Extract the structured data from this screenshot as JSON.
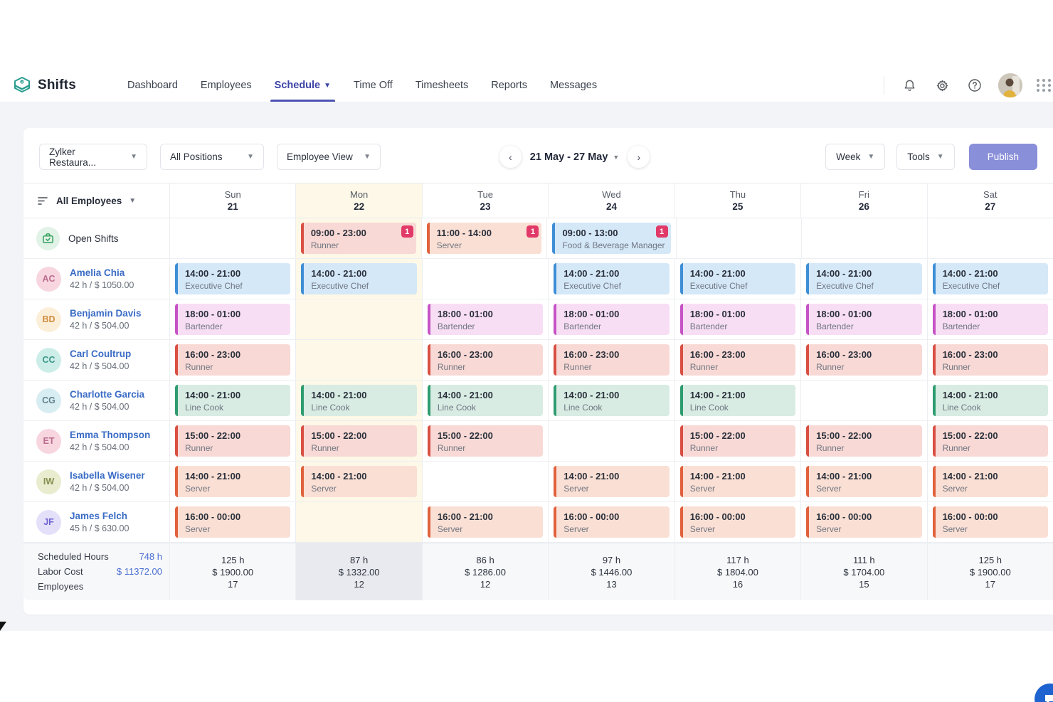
{
  "nav": {
    "brand": "Shifts",
    "items": [
      "Dashboard",
      "Employees",
      "Schedule",
      "Time Off",
      "Timesheets",
      "Reports",
      "Messages"
    ],
    "active": "Schedule",
    "right_icons": [
      "bell-icon",
      "gear-icon",
      "help-icon",
      "user-avatar",
      "apps-grid-icon"
    ]
  },
  "toolbar": {
    "location_dropdown": "Zylker Restaura...",
    "positions_dropdown": "All Positions",
    "view_dropdown": "Employee View",
    "date_range": "21 May - 27 May",
    "range_dropdown": "Week",
    "tools_dropdown": "Tools",
    "publish_label": "Publish"
  },
  "schedule": {
    "left_header": "All Employees",
    "days": [
      {
        "name": "Sun",
        "date": "21",
        "highlight": false
      },
      {
        "name": "Mon",
        "date": "22",
        "highlight": true
      },
      {
        "name": "Tue",
        "date": "23",
        "highlight": false
      },
      {
        "name": "Wed",
        "date": "24",
        "highlight": false
      },
      {
        "name": "Thu",
        "date": "25",
        "highlight": false
      },
      {
        "name": "Fri",
        "date": "26",
        "highlight": false
      },
      {
        "name": "Sat",
        "date": "27",
        "highlight": false
      }
    ],
    "shift_colors": {
      "executive_chef": {
        "bg": "#d5e8f8",
        "border": "#3e8ed6"
      },
      "bartender": {
        "bg": "#f8def5",
        "border": "#c653c6"
      },
      "runner": {
        "bg": "#f8d9d5",
        "border": "#d94f43"
      },
      "line_cook": {
        "bg": "#d8ece3",
        "border": "#2f9c70"
      },
      "server": {
        "bg": "#fadfd4",
        "border": "#e0613c"
      },
      "fb_manager": {
        "bg": "#d5e8f8",
        "border": "#3e8ed6"
      }
    },
    "open_row": {
      "label": "Open Shifts",
      "cells": [
        null,
        {
          "time": "09:00 - 23:00",
          "role": "Runner",
          "type": "runner",
          "badge": "1"
        },
        {
          "time": "11:00 - 14:00",
          "role": "Server",
          "type": "server",
          "badge": "1"
        },
        {
          "time": "09:00 - 13:00",
          "role": "Food & Beverage Manager",
          "type": "fb_manager",
          "badge": "1"
        },
        null,
        null,
        null
      ]
    },
    "employees": [
      {
        "name": "Amelia Chia",
        "meta": "42 h / $ 1050.00",
        "initials": "AC",
        "avatar_bg": "#f7d6e0",
        "avatar_fg": "#bb6d8d",
        "cells": [
          {
            "time": "14:00 - 21:00",
            "role": "Executive Chef",
            "type": "executive_chef"
          },
          {
            "time": "14:00 - 21:00",
            "role": "Executive Chef",
            "type": "executive_chef"
          },
          null,
          {
            "time": "14:00 - 21:00",
            "role": "Executive Chef",
            "type": "executive_chef"
          },
          {
            "time": "14:00 - 21:00",
            "role": "Executive Chef",
            "type": "executive_chef"
          },
          {
            "time": "14:00 - 21:00",
            "role": "Executive Chef",
            "type": "executive_chef"
          },
          {
            "time": "14:00 - 21:00",
            "role": "Executive Chef",
            "type": "executive_chef"
          }
        ]
      },
      {
        "name": "Benjamin Davis",
        "meta": "42 h / $ 504.00",
        "initials": "BD",
        "avatar_bg": "#fcefd9",
        "avatar_fg": "#d08c3f",
        "cells": [
          {
            "time": "18:00 - 01:00",
            "role": "Bartender",
            "type": "bartender"
          },
          null,
          {
            "time": "18:00 - 01:00",
            "role": "Bartender",
            "type": "bartender"
          },
          {
            "time": "18:00 - 01:00",
            "role": "Bartender",
            "type": "bartender"
          },
          {
            "time": "18:00 - 01:00",
            "role": "Bartender",
            "type": "bartender"
          },
          {
            "time": "18:00 - 01:00",
            "role": "Bartender",
            "type": "bartender"
          },
          {
            "time": "18:00 - 01:00",
            "role": "Bartender",
            "type": "bartender"
          }
        ]
      },
      {
        "name": "Carl Coultrup",
        "meta": "42 h / $ 504.00",
        "initials": "CC",
        "avatar_bg": "#cdeee8",
        "avatar_fg": "#3e968a",
        "cells": [
          {
            "time": "16:00 - 23:00",
            "role": "Runner",
            "type": "runner"
          },
          null,
          {
            "time": "16:00 - 23:00",
            "role": "Runner",
            "type": "runner"
          },
          {
            "time": "16:00 - 23:00",
            "role": "Runner",
            "type": "runner"
          },
          {
            "time": "16:00 - 23:00",
            "role": "Runner",
            "type": "runner"
          },
          {
            "time": "16:00 - 23:00",
            "role": "Runner",
            "type": "runner"
          },
          {
            "time": "16:00 - 23:00",
            "role": "Runner",
            "type": "runner"
          }
        ]
      },
      {
        "name": "Charlotte Garcia",
        "meta": "42 h / $ 504.00",
        "initials": "CG",
        "avatar_bg": "#d8edf2",
        "avatar_fg": "#63818f",
        "cells": [
          {
            "time": "14:00 - 21:00",
            "role": "Line Cook",
            "type": "line_cook"
          },
          {
            "time": "14:00 - 21:00",
            "role": "Line Cook",
            "type": "line_cook"
          },
          {
            "time": "14:00 - 21:00",
            "role": "Line Cook",
            "type": "line_cook"
          },
          {
            "time": "14:00 - 21:00",
            "role": "Line Cook",
            "type": "line_cook"
          },
          {
            "time": "14:00 - 21:00",
            "role": "Line Cook",
            "type": "line_cook"
          },
          null,
          {
            "time": "14:00 - 21:00",
            "role": "Line Cook",
            "type": "line_cook"
          }
        ]
      },
      {
        "name": "Emma Thompson",
        "meta": "42 h / $ 504.00",
        "initials": "ET",
        "avatar_bg": "#f7d6e0",
        "avatar_fg": "#bb6d8d",
        "cells": [
          {
            "time": "15:00 - 22:00",
            "role": "Runner",
            "type": "runner"
          },
          {
            "time": "15:00 - 22:00",
            "role": "Runner",
            "type": "runner"
          },
          {
            "time": "15:00 - 22:00",
            "role": "Runner",
            "type": "runner"
          },
          null,
          {
            "time": "15:00 - 22:00",
            "role": "Runner",
            "type": "runner"
          },
          {
            "time": "15:00 - 22:00",
            "role": "Runner",
            "type": "runner"
          },
          {
            "time": "15:00 - 22:00",
            "role": "Runner",
            "type": "runner"
          }
        ]
      },
      {
        "name": "Isabella Wisener",
        "meta": "42 h / $ 504.00",
        "initials": "IW",
        "avatar_bg": "#e9ecce",
        "avatar_fg": "#888d50",
        "cells": [
          {
            "time": "14:00 - 21:00",
            "role": "Server",
            "type": "server"
          },
          {
            "time": "14:00 - 21:00",
            "role": "Server",
            "type": "server"
          },
          null,
          {
            "time": "14:00 - 21:00",
            "role": "Server",
            "type": "server"
          },
          {
            "time": "14:00 - 21:00",
            "role": "Server",
            "type": "server"
          },
          {
            "time": "14:00 - 21:00",
            "role": "Server",
            "type": "server"
          },
          {
            "time": "14:00 - 21:00",
            "role": "Server",
            "type": "server"
          }
        ]
      },
      {
        "name": "James Felch",
        "meta": "45 h / $ 630.00",
        "initials": "JF",
        "avatar_bg": "#e4e0fa",
        "avatar_fg": "#6f62d0",
        "cells": [
          {
            "time": "16:00 - 00:00",
            "role": "Server",
            "type": "server"
          },
          null,
          {
            "time": "16:00 - 21:00",
            "role": "Server",
            "type": "server"
          },
          {
            "time": "16:00 - 00:00",
            "role": "Server",
            "type": "server"
          },
          {
            "time": "16:00 - 00:00",
            "role": "Server",
            "type": "server"
          },
          {
            "time": "16:00 - 00:00",
            "role": "Server",
            "type": "server"
          },
          {
            "time": "16:00 - 00:00",
            "role": "Server",
            "type": "server"
          }
        ]
      }
    ]
  },
  "footer": {
    "scheduled_hours_label": "Scheduled Hours",
    "labor_cost_label": "Labor Cost",
    "employees_label": "Employees",
    "total_hours": "748 h",
    "total_cost": "$ 11372.00",
    "day_stats": [
      {
        "hours": "125 h",
        "cost": "$ 1900.00",
        "employees": "17"
      },
      {
        "hours": "87 h",
        "cost": "$ 1332.00",
        "employees": "12"
      },
      {
        "hours": "86 h",
        "cost": "$ 1286.00",
        "employees": "12"
      },
      {
        "hours": "97 h",
        "cost": "$ 1446.00",
        "employees": "13"
      },
      {
        "hours": "117 h",
        "cost": "$ 1804.00",
        "employees": "16"
      },
      {
        "hours": "111 h",
        "cost": "$ 1704.00",
        "employees": "15"
      },
      {
        "hours": "125 h",
        "cost": "$ 1900.00",
        "employees": "17"
      }
    ]
  }
}
